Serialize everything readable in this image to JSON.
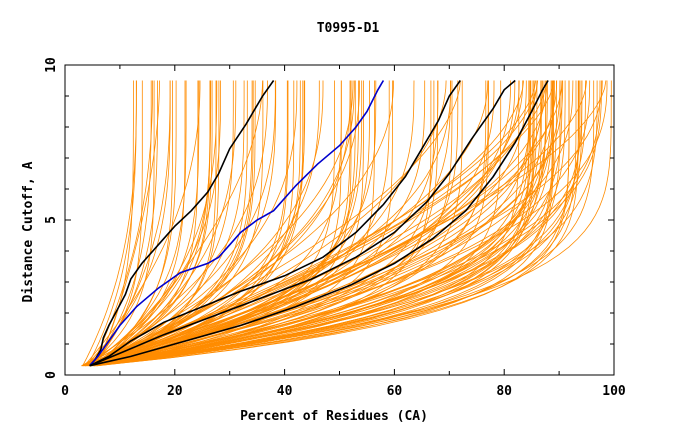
{
  "chart_data": {
    "type": "line",
    "title": "T0995-D1",
    "xlabel": "Percent of Residues (CA)",
    "ylabel": "Distance Cutoff, A",
    "xlim": [
      0,
      100
    ],
    "ylim": [
      0,
      10
    ],
    "x_ticks": [
      0,
      20,
      40,
      60,
      80,
      100
    ],
    "y_ticks": [
      0,
      5,
      10
    ],
    "grid": false,
    "legend": "none",
    "colors": {
      "models": "#ff8c00",
      "highlight_black": "#000000",
      "highlight_blue": "#0000cd"
    },
    "highlighted_series": [
      {
        "color": "black",
        "points": [
          [
            4.5,
            0.3
          ],
          [
            5.5,
            0.5
          ],
          [
            6.5,
            0.8
          ],
          [
            7,
            1.2
          ],
          [
            8,
            1.6
          ],
          [
            9.5,
            2.1
          ],
          [
            11,
            2.6
          ],
          [
            12,
            3.1
          ],
          [
            14,
            3.6
          ],
          [
            17,
            4.2
          ],
          [
            20,
            4.8
          ],
          [
            23,
            5.3
          ],
          [
            26,
            5.9
          ],
          [
            28,
            6.5
          ],
          [
            30,
            7.3
          ],
          [
            33,
            8.1
          ],
          [
            36,
            9.0
          ],
          [
            38,
            9.5
          ]
        ]
      },
      {
        "color": "blue",
        "points": [
          [
            4.5,
            0.3
          ],
          [
            6,
            0.6
          ],
          [
            8,
            1.1
          ],
          [
            10,
            1.6
          ],
          [
            13,
            2.2
          ],
          [
            17,
            2.8
          ],
          [
            21,
            3.3
          ],
          [
            26,
            3.6
          ],
          [
            28,
            3.8
          ],
          [
            30,
            4.2
          ],
          [
            32,
            4.6
          ],
          [
            35,
            5.0
          ],
          [
            38,
            5.3
          ],
          [
            42,
            6.1
          ],
          [
            46,
            6.8
          ],
          [
            50,
            7.4
          ],
          [
            53,
            8.0
          ],
          [
            55,
            8.5
          ],
          [
            57,
            9.2
          ],
          [
            58,
            9.5
          ]
        ]
      },
      {
        "color": "black",
        "points": [
          [
            4.5,
            0.3
          ],
          [
            8,
            0.6
          ],
          [
            12,
            1.1
          ],
          [
            18,
            1.7
          ],
          [
            25,
            2.2
          ],
          [
            32,
            2.7
          ],
          [
            40,
            3.2
          ],
          [
            47,
            3.8
          ],
          [
            53,
            4.6
          ],
          [
            58,
            5.5
          ],
          [
            62,
            6.4
          ],
          [
            65,
            7.3
          ],
          [
            68,
            8.2
          ],
          [
            70,
            9.0
          ],
          [
            72,
            9.5
          ]
        ]
      },
      {
        "color": "black",
        "points": [
          [
            4.5,
            0.3
          ],
          [
            10,
            0.7
          ],
          [
            18,
            1.3
          ],
          [
            27,
            1.9
          ],
          [
            36,
            2.5
          ],
          [
            45,
            3.1
          ],
          [
            53,
            3.8
          ],
          [
            60,
            4.6
          ],
          [
            66,
            5.6
          ],
          [
            70,
            6.5
          ],
          [
            74,
            7.6
          ],
          [
            78,
            8.6
          ],
          [
            80,
            9.2
          ],
          [
            82,
            9.5
          ]
        ]
      },
      {
        "color": "black",
        "points": [
          [
            4.5,
            0.3
          ],
          [
            12,
            0.6
          ],
          [
            22,
            1.1
          ],
          [
            32,
            1.6
          ],
          [
            42,
            2.2
          ],
          [
            52,
            2.9
          ],
          [
            60,
            3.6
          ],
          [
            67,
            4.4
          ],
          [
            73,
            5.3
          ],
          [
            78,
            6.4
          ],
          [
            82,
            7.5
          ],
          [
            85,
            8.5
          ],
          [
            87,
            9.2
          ],
          [
            88,
            9.5
          ]
        ]
      }
    ]
  }
}
